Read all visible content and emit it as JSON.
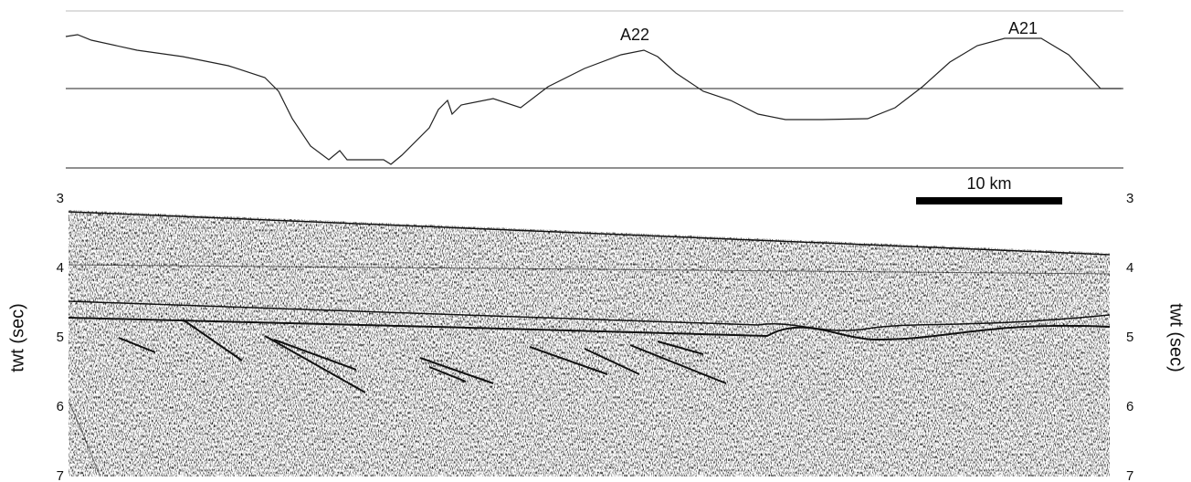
{
  "anomaly_profile": {
    "peak_labels": [
      "A22",
      "A21"
    ]
  },
  "scale_bar": {
    "label": "10 km"
  },
  "seismic_section": {
    "y_axis_label": "twt (sec)",
    "left_ticks": [
      3,
      4,
      5,
      6,
      7
    ],
    "right_ticks": [
      3,
      4,
      5,
      6,
      7
    ]
  }
}
